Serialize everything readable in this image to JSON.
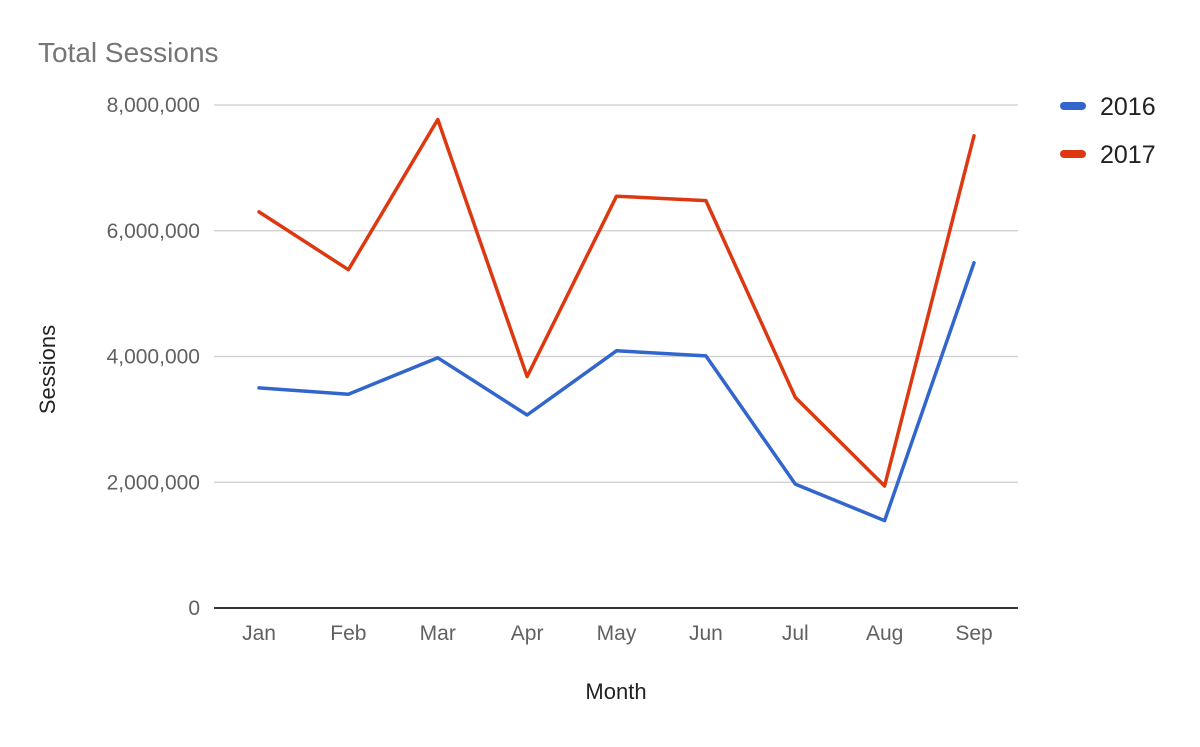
{
  "chart_data": {
    "type": "line",
    "title": "Total Sessions",
    "xlabel": "Month",
    "ylabel": "Sessions",
    "categories": [
      "Jan",
      "Feb",
      "Mar",
      "Apr",
      "May",
      "Jun",
      "Jul",
      "Aug",
      "Sep"
    ],
    "ylim": [
      0,
      8000000
    ],
    "yticks": [
      0,
      2000000,
      4000000,
      6000000,
      8000000
    ],
    "ytick_labels": [
      "0",
      "2,000,000",
      "4,000,000",
      "6,000,000",
      "8,000,000"
    ],
    "grid": true,
    "legend_position": "top-right",
    "series": [
      {
        "name": "2016",
        "color": "#3366cc",
        "values": [
          3500000,
          3400000,
          3980000,
          3070000,
          4090000,
          4010000,
          1970000,
          1390000,
          5490000
        ]
      },
      {
        "name": "2017",
        "color": "#dc3912",
        "values": [
          6300000,
          5380000,
          7770000,
          3680000,
          6550000,
          6480000,
          3350000,
          1940000,
          7510000
        ]
      }
    ]
  }
}
